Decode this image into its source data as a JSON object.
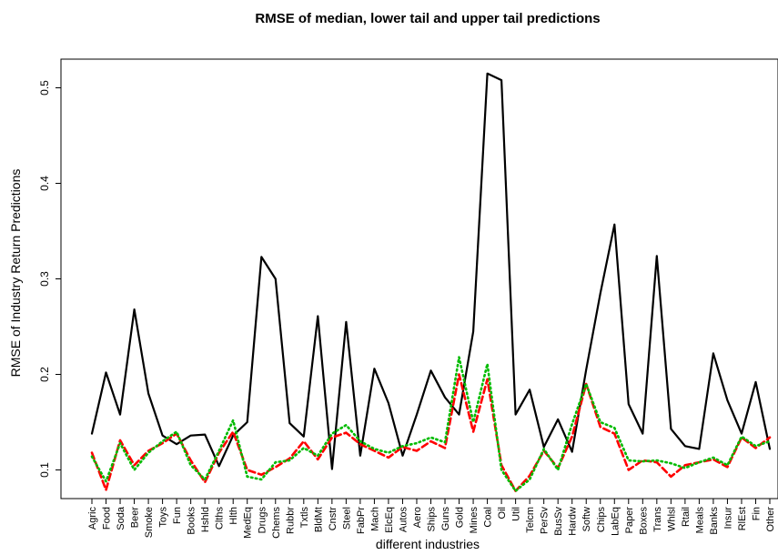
{
  "chart_data": {
    "type": "line",
    "title": "RMSE of median, lower tail and upper tail predictions",
    "xlabel": "different industries",
    "ylabel": "RMSE of Industry Return Predictions",
    "ylim": [
      0.07,
      0.53
    ],
    "yticks": [
      0.1,
      0.2,
      0.3,
      0.4,
      0.5
    ],
    "ytick_labels": [
      "0.1",
      "0.2",
      "0.3",
      "0.4",
      "0.5"
    ],
    "grid": false,
    "legend": "none",
    "categories": [
      "Agric",
      "Food",
      "Soda",
      "Beer",
      "Smoke",
      "Toys",
      "Fun",
      "Books",
      "Hshld",
      "Clths",
      "Hlth",
      "MedEq",
      "Drugs",
      "Chems",
      "Rubbr",
      "Txtls",
      "BldMt",
      "Cnstr",
      "Steel",
      "FabPr",
      "Mach",
      "ElcEq",
      "Autos",
      "Aero",
      "Ships",
      "Guns",
      "Gold",
      "Mines",
      "Coal",
      "Oil",
      "Util",
      "Telcm",
      "PerSv",
      "BusSv",
      "Hardw",
      "Softw",
      "Chips",
      "LabEq",
      "Paper",
      "Boxes",
      "Trans",
      "Whlsl",
      "Rtail",
      "Meals",
      "Banks",
      "Insur",
      "RlEst",
      "Fin",
      "Other"
    ],
    "series": [
      {
        "style": "solid",
        "color": "#000000",
        "values": [
          0.138,
          0.202,
          0.158,
          0.268,
          0.18,
          0.136,
          0.127,
          0.136,
          0.137,
          0.104,
          0.136,
          0.15,
          0.323,
          0.3,
          0.149,
          0.135,
          0.261,
          0.101,
          0.255,
          0.115,
          0.206,
          0.17,
          0.115,
          0.158,
          0.204,
          0.176,
          0.158,
          0.245,
          0.515,
          0.508,
          0.158,
          0.184,
          0.124,
          0.153,
          0.119,
          0.205,
          0.285,
          0.357,
          0.169,
          0.138,
          0.324,
          0.143,
          0.125,
          0.122,
          0.222,
          0.173,
          0.138,
          0.192,
          0.122
        ]
      },
      {
        "style": "dashed",
        "color": "#ff0000",
        "values": [
          0.118,
          0.079,
          0.131,
          0.105,
          0.12,
          0.128,
          0.138,
          0.11,
          0.087,
          0.118,
          0.14,
          0.1,
          0.095,
          0.103,
          0.112,
          0.13,
          0.111,
          0.134,
          0.139,
          0.127,
          0.12,
          0.113,
          0.124,
          0.12,
          0.13,
          0.123,
          0.2,
          0.14,
          0.195,
          0.105,
          0.078,
          0.094,
          0.12,
          0.102,
          0.135,
          0.19,
          0.145,
          0.138,
          0.1,
          0.11,
          0.108,
          0.093,
          0.105,
          0.108,
          0.111,
          0.103,
          0.134,
          0.123,
          0.134
        ]
      },
      {
        "style": "dotted",
        "color": "#00bb00",
        "values": [
          0.114,
          0.088,
          0.128,
          0.1,
          0.118,
          0.13,
          0.14,
          0.105,
          0.09,
          0.12,
          0.152,
          0.093,
          0.09,
          0.108,
          0.11,
          0.123,
          0.115,
          0.138,
          0.147,
          0.13,
          0.122,
          0.118,
          0.125,
          0.128,
          0.134,
          0.129,
          0.218,
          0.15,
          0.211,
          0.1,
          0.078,
          0.09,
          0.122,
          0.1,
          0.148,
          0.19,
          0.15,
          0.144,
          0.11,
          0.109,
          0.11,
          0.107,
          0.102,
          0.108,
          0.113,
          0.105,
          0.135,
          0.125,
          0.13
        ]
      }
    ]
  }
}
